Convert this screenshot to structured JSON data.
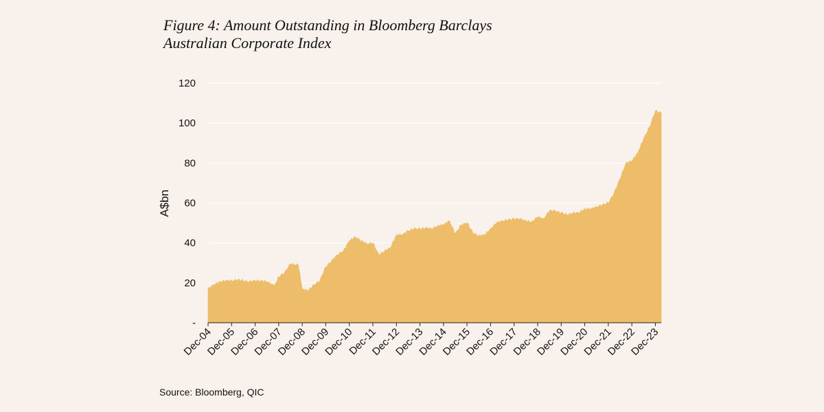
{
  "figure": {
    "title_line1": "Figure 4: Amount Outstanding in Bloomberg Barclays",
    "title_line2": "Australian Corporate Index",
    "source": "Source: Bloomberg, QIC"
  },
  "chart_data": {
    "type": "area",
    "title": "Figure 4: Amount Outstanding in Bloomberg Barclays Australian Corporate Index",
    "xlabel": "",
    "ylabel": "A$bn",
    "ylim": [
      0,
      120
    ],
    "y_ticks": [
      0,
      20,
      40,
      60,
      80,
      100,
      120
    ],
    "y_tick_labels": [
      "-",
      "20",
      "40",
      "60",
      "80",
      "100",
      "120"
    ],
    "x_tick_labels": [
      "Dec-04",
      "Dec-05",
      "Dec-06",
      "Dec-07",
      "Dec-08",
      "Dec-09",
      "Dec-10",
      "Dec-11",
      "Dec-12",
      "Dec-13",
      "Dec-14",
      "Dec-15",
      "Dec-16",
      "Dec-17",
      "Dec-18",
      "Dec-19",
      "Dec-20",
      "Dec-21",
      "Dec-22",
      "Dec-23"
    ],
    "x_range": [
      "Dec-04",
      "Mar-24"
    ],
    "grid": "horizontal",
    "fill_color": "#eebd69",
    "series": [
      {
        "x": [
          "Dec-04",
          "Mar-05",
          "Jun-05",
          "Sep-05",
          "Dec-05",
          "Mar-06",
          "Jun-06",
          "Sep-06",
          "Dec-06",
          "Mar-07",
          "Jun-07",
          "Sep-07",
          "Oct-07",
          "Dec-07",
          "Mar-08",
          "Jun-08",
          "Sep-08",
          "Oct-08",
          "Dec-08",
          "Mar-09",
          "Jun-09",
          "Sep-09",
          "Dec-09",
          "Mar-10",
          "Jun-10",
          "Sep-10",
          "Dec-10",
          "Mar-11",
          "Jun-11",
          "Sep-11",
          "Dec-11",
          "Mar-12",
          "Jun-12",
          "Sep-12",
          "Dec-12",
          "Mar-13",
          "Jun-13",
          "Sep-13",
          "Dec-13",
          "Mar-14",
          "Jun-14",
          "Sep-14",
          "Dec-14",
          "Mar-15",
          "Jun-15",
          "Sep-15",
          "Dec-15",
          "Mar-16",
          "Jun-16",
          "Sep-16",
          "Dec-16",
          "Mar-17",
          "Jun-17",
          "Sep-17",
          "Dec-17",
          "Mar-18",
          "Jun-18",
          "Sep-18",
          "Dec-18",
          "Mar-19",
          "Jun-19",
          "Sep-19",
          "Dec-19",
          "Mar-20",
          "Jun-20",
          "Sep-20",
          "Dec-20",
          "Mar-21",
          "Jun-21",
          "Sep-21",
          "Dec-21",
          "Mar-22",
          "Jun-22",
          "Sep-22",
          "Dec-22",
          "Mar-23",
          "Jun-23",
          "Sep-23",
          "Dec-23",
          "Mar-24"
        ],
        "values": [
          17,
          19,
          20.5,
          21,
          21,
          21.5,
          21,
          20.5,
          21,
          21,
          20.5,
          19,
          18.5,
          23,
          25,
          29.5,
          29,
          29,
          17,
          16,
          19,
          21,
          28,
          31,
          34,
          36,
          41,
          43,
          41,
          39.5,
          40,
          34,
          36,
          37.5,
          44,
          44,
          46,
          47,
          47,
          47.5,
          47,
          48.5,
          49,
          51,
          44.5,
          49,
          50,
          45,
          43.5,
          44,
          47,
          50,
          51,
          51.5,
          52,
          52,
          51,
          50.5,
          53,
          52,
          56,
          56,
          55,
          54,
          55,
          55,
          57,
          57,
          58,
          59,
          60,
          65,
          72,
          80,
          81,
          85,
          92,
          98,
          106,
          105
        ]
      }
    ]
  }
}
